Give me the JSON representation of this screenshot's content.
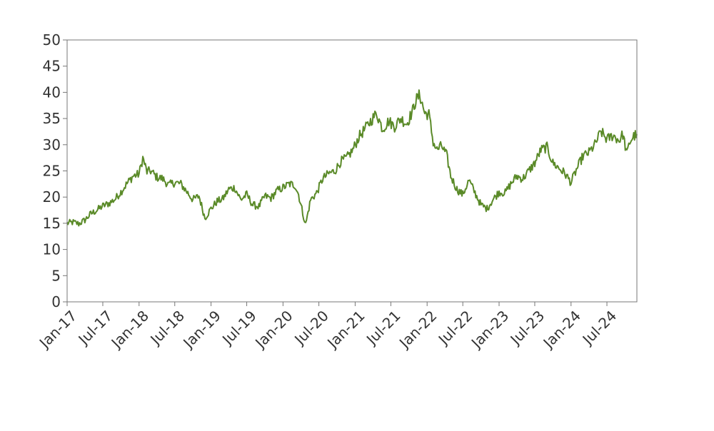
{
  "chart_data": {
    "type": "line",
    "title": "",
    "xlabel": "",
    "ylabel": "",
    "xlim": [
      "2017-01-01",
      "2024-11-30"
    ],
    "ylim": [
      0,
      50
    ],
    "yticks": [
      0,
      5,
      10,
      15,
      20,
      25,
      30,
      35,
      40,
      45,
      50
    ],
    "xtick_labels": [
      "Jan-17",
      "Jul-17",
      "Jan-18",
      "Jul-18",
      "Jan-19",
      "Jul-19",
      "Jan-20",
      "Jul-20",
      "Jan-21",
      "Jul-21",
      "Jan-22",
      "Jul-22",
      "Jan-23",
      "Jul-23",
      "Jan-24",
      "Jul-24"
    ],
    "xtick_dates": [
      "2017-01-01",
      "2017-07-01",
      "2018-01-01",
      "2018-07-01",
      "2019-01-01",
      "2019-07-01",
      "2020-01-01",
      "2020-07-01",
      "2021-01-01",
      "2021-07-01",
      "2022-01-01",
      "2022-07-01",
      "2023-01-01",
      "2023-07-01",
      "2024-01-01",
      "2024-07-01"
    ],
    "grid": false,
    "legend": "none",
    "series": [
      {
        "color": "#5a8a28",
        "points": [
          [
            "2017-01-01",
            15.0
          ],
          [
            "2017-02-01",
            15.2
          ],
          [
            "2017-03-01",
            14.9
          ],
          [
            "2017-04-01",
            15.6
          ],
          [
            "2017-05-01",
            16.8
          ],
          [
            "2017-06-01",
            17.5
          ],
          [
            "2017-07-01",
            18.3
          ],
          [
            "2017-08-01",
            18.8
          ],
          [
            "2017-09-01",
            19.6
          ],
          [
            "2017-10-01",
            21.0
          ],
          [
            "2017-11-01",
            22.6
          ],
          [
            "2017-12-01",
            24.0
          ],
          [
            "2018-01-01",
            24.4
          ],
          [
            "2018-01-20",
            27.5
          ],
          [
            "2018-02-10",
            24.8
          ],
          [
            "2018-03-01",
            25.0
          ],
          [
            "2018-04-01",
            23.8
          ],
          [
            "2018-05-01",
            23.5
          ],
          [
            "2018-06-01",
            22.3
          ],
          [
            "2018-07-01",
            22.8
          ],
          [
            "2018-08-01",
            22.5
          ],
          [
            "2018-09-01",
            21.0
          ],
          [
            "2018-10-01",
            19.5
          ],
          [
            "2018-11-01",
            20.2
          ],
          [
            "2018-12-01",
            16.0
          ],
          [
            "2019-01-01",
            17.8
          ],
          [
            "2019-02-01",
            19.2
          ],
          [
            "2019-03-01",
            19.6
          ],
          [
            "2019-04-01",
            21.5
          ],
          [
            "2019-05-01",
            21.8
          ],
          [
            "2019-06-01",
            19.5
          ],
          [
            "2019-07-01",
            20.5
          ],
          [
            "2019-08-01",
            18.5
          ],
          [
            "2019-09-01",
            18.2
          ],
          [
            "2019-10-01",
            20.2
          ],
          [
            "2019-11-01",
            19.8
          ],
          [
            "2019-12-01",
            21.2
          ],
          [
            "2020-01-01",
            21.8
          ],
          [
            "2020-02-01",
            22.5
          ],
          [
            "2020-03-01",
            22.3
          ],
          [
            "2020-03-20",
            20.5
          ],
          [
            "2020-04-10",
            17.0
          ],
          [
            "2020-04-25",
            14.8
          ],
          [
            "2020-05-20",
            19.5
          ],
          [
            "2020-06-20",
            20.8
          ],
          [
            "2020-07-20",
            23.5
          ],
          [
            "2020-08-20",
            24.5
          ],
          [
            "2020-09-20",
            25.0
          ],
          [
            "2020-10-20",
            26.8
          ],
          [
            "2020-11-20",
            27.5
          ],
          [
            "2020-12-20",
            29.0
          ],
          [
            "2021-01-20",
            31.5
          ],
          [
            "2021-02-20",
            33.0
          ],
          [
            "2021-03-20",
            34.5
          ],
          [
            "2021-04-20",
            36.0
          ],
          [
            "2021-05-20",
            33.0
          ],
          [
            "2021-06-20",
            34.5
          ],
          [
            "2021-07-20",
            33.5
          ],
          [
            "2021-08-20",
            35.0
          ],
          [
            "2021-09-20",
            34.0
          ],
          [
            "2021-10-20",
            36.5
          ],
          [
            "2021-11-05",
            38.5
          ],
          [
            "2021-11-25",
            39.5
          ],
          [
            "2021-12-20",
            36.0
          ],
          [
            "2022-01-10",
            35.8
          ],
          [
            "2022-02-01",
            30.5
          ],
          [
            "2022-02-20",
            29.0
          ],
          [
            "2022-03-15",
            29.8
          ],
          [
            "2022-04-10",
            28.0
          ],
          [
            "2022-05-01",
            24.0
          ],
          [
            "2022-06-01",
            21.5
          ],
          [
            "2022-07-01",
            20.5
          ],
          [
            "2022-08-01",
            23.2
          ],
          [
            "2022-09-01",
            20.8
          ],
          [
            "2022-10-01",
            18.5
          ],
          [
            "2022-11-01",
            17.8
          ],
          [
            "2022-12-01",
            19.5
          ],
          [
            "2023-01-01",
            21.0
          ],
          [
            "2023-02-01",
            20.8
          ],
          [
            "2023-03-01",
            22.5
          ],
          [
            "2023-04-01",
            24.0
          ],
          [
            "2023-05-01",
            23.5
          ],
          [
            "2023-06-01",
            25.0
          ],
          [
            "2023-07-01",
            26.5
          ],
          [
            "2023-08-01",
            29.0
          ],
          [
            "2023-09-01",
            29.5
          ],
          [
            "2023-10-01",
            26.5
          ],
          [
            "2023-11-01",
            25.5
          ],
          [
            "2023-12-01",
            24.5
          ],
          [
            "2024-01-01",
            22.8
          ],
          [
            "2024-02-01",
            25.5
          ],
          [
            "2024-03-01",
            27.8
          ],
          [
            "2024-04-01",
            28.5
          ],
          [
            "2024-05-01",
            30.0
          ],
          [
            "2024-06-01",
            32.5
          ],
          [
            "2024-07-01",
            31.0
          ],
          [
            "2024-08-01",
            31.8
          ],
          [
            "2024-09-01",
            30.8
          ],
          [
            "2024-09-20",
            32.0
          ],
          [
            "2024-10-10",
            28.2
          ],
          [
            "2024-10-25",
            30.5
          ],
          [
            "2024-11-10",
            31.5
          ],
          [
            "2024-11-30",
            32.0
          ]
        ]
      }
    ]
  }
}
